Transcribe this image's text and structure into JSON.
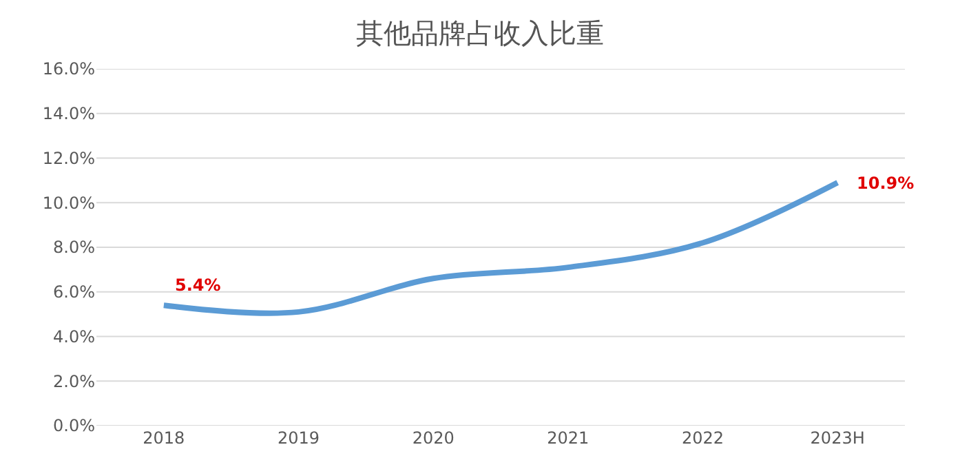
{
  "chart_data": {
    "type": "line",
    "title": "其他品牌占收入比重",
    "categories": [
      "2018",
      "2019",
      "2020",
      "2021",
      "2022",
      "2023H"
    ],
    "values": [
      5.4,
      5.1,
      6.6,
      7.1,
      8.2,
      10.9
    ],
    "value_labels": [
      "5.4%",
      null,
      null,
      null,
      null,
      "10.9%"
    ],
    "color": "#5b9bd5",
    "ylim": [
      0,
      16
    ],
    "yticks": [
      {
        "value": 0,
        "label": "0.0%"
      },
      {
        "value": 2,
        "label": "2.0%"
      },
      {
        "value": 4,
        "label": "4.0%"
      },
      {
        "value": 6,
        "label": "6.0%"
      },
      {
        "value": 8,
        "label": "8.0%"
      },
      {
        "value": 10,
        "label": "10.0%"
      },
      {
        "value": 12,
        "label": "12.0%"
      },
      {
        "value": 14,
        "label": "14.0%"
      },
      {
        "value": 16,
        "label": "16.0%"
      }
    ],
    "grid": "y",
    "marker": "none",
    "line_style": "solid"
  }
}
